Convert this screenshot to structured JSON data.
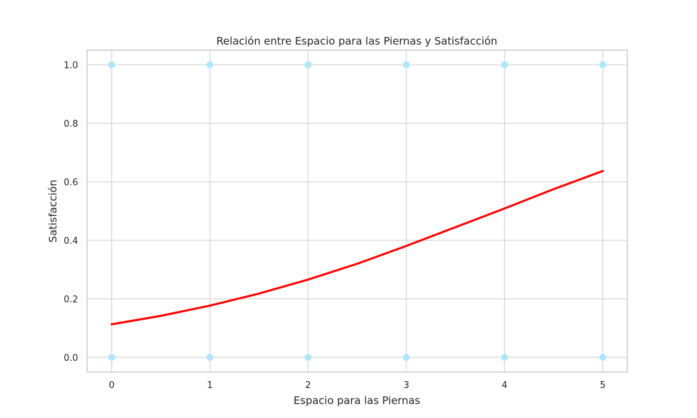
{
  "chart_data": {
    "type": "scatter",
    "title": "Relación entre Espacio para las Piernas y Satisfacción",
    "xlabel": "Espacio para las Piernas",
    "ylabel": "Satisfacción",
    "xlim": [
      -0.25,
      5.25
    ],
    "ylim": [
      -0.05,
      1.05
    ],
    "x_ticks": [
      "0",
      "1",
      "2",
      "3",
      "4",
      "5"
    ],
    "y_ticks": [
      "0.0",
      "0.2",
      "0.4",
      "0.6",
      "0.8",
      "1.0"
    ],
    "grid": true,
    "points": [
      {
        "x": 0,
        "y": 1
      },
      {
        "x": 1,
        "y": 1
      },
      {
        "x": 2,
        "y": 1
      },
      {
        "x": 3,
        "y": 1
      },
      {
        "x": 4,
        "y": 1
      },
      {
        "x": 5,
        "y": 1
      },
      {
        "x": 0,
        "y": 0
      },
      {
        "x": 1,
        "y": 0
      },
      {
        "x": 2,
        "y": 0
      },
      {
        "x": 3,
        "y": 0
      },
      {
        "x": 4,
        "y": 0
      },
      {
        "x": 5,
        "y": 0
      }
    ],
    "fit_line": {
      "x": [
        0,
        0.5,
        1,
        1.5,
        2,
        2.5,
        3,
        3.5,
        4,
        4.5,
        5
      ],
      "y": [
        0.113,
        0.142,
        0.177,
        0.218,
        0.266,
        0.32,
        0.381,
        0.445,
        0.509,
        0.575,
        0.637
      ]
    },
    "colors": {
      "points": "#aee6fb",
      "line": "#ff0000",
      "grid": "#cccccc"
    }
  }
}
